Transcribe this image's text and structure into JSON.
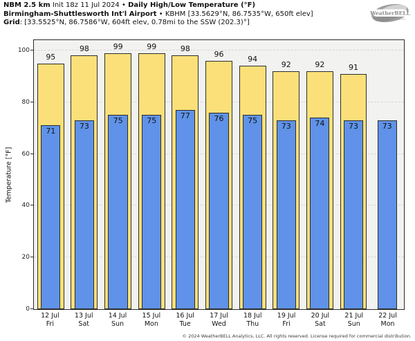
{
  "header": {
    "line1_bold1": "NBM 2.5 km",
    "line1_regular": " Init 18z 11 Jul 2024 • ",
    "line1_bold2": "Daily High/Low Temperature (°F)",
    "line2_bold": "Birmingham-Shuttlesworth Int'l Airport",
    "line2_regular": " • KBHM [33.5629°N, 86.7535°W, 650ft elev]",
    "line3_bold": "Grid",
    "line3_regular": ": [33.5525°N, 86.7586°W, 604ft elev, 0.78mi to the SSW (202.3)°]"
  },
  "logo": {
    "text": "WeatherBELL",
    "subtext": "Analytics LLC"
  },
  "chart_data": {
    "type": "bar",
    "title": "Daily High/Low Temperature (°F)",
    "ylabel": "Temperature [°F]",
    "ylim": [
      0,
      104
    ],
    "yticks": [
      0,
      20,
      40,
      60,
      80,
      100
    ],
    "grid": true,
    "categories": [
      {
        "date": "12 Jul",
        "day": "Fri"
      },
      {
        "date": "13 Jul",
        "day": "Sat"
      },
      {
        "date": "14 Jul",
        "day": "Sun"
      },
      {
        "date": "15 Jul",
        "day": "Mon"
      },
      {
        "date": "16 Jul",
        "day": "Tue"
      },
      {
        "date": "17 Jul",
        "day": "Wed"
      },
      {
        "date": "18 Jul",
        "day": "Thu"
      },
      {
        "date": "19 Jul",
        "day": "Fri"
      },
      {
        "date": "20 Jul",
        "day": "Sat"
      },
      {
        "date": "21 Jul",
        "day": "Sun"
      },
      {
        "date": "22 Jul",
        "day": "Mon"
      }
    ],
    "series": [
      {
        "name": "High",
        "color": "#fbe07a",
        "values": [
          95,
          98,
          99,
          99,
          98,
          96,
          94,
          92,
          92,
          91,
          null
        ]
      },
      {
        "name": "Low",
        "color": "#5f92e8",
        "values": [
          71,
          73,
          75,
          75,
          77,
          76,
          75,
          73,
          74,
          73,
          73
        ]
      }
    ]
  },
  "footer": {
    "copyright": "© 2024 WeatherBELL Analytics, LLC. All rights reserved. License required for commercial distribution."
  }
}
